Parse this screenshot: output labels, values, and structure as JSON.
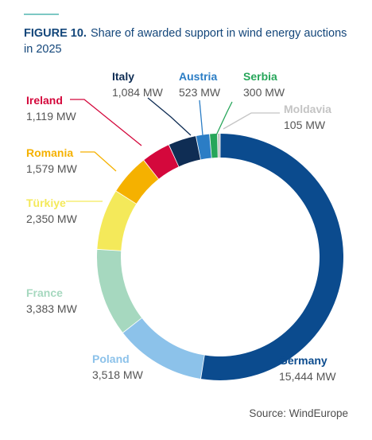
{
  "figure": {
    "label": "FIGURE 10.",
    "caption": "Share of awarded support in wind energy auctions in 2025"
  },
  "source": "Source: WindEurope",
  "chart_data": {
    "type": "pie",
    "donut": true,
    "title": "Share of awarded support in wind energy auctions in 2025",
    "unit": "MW",
    "slices": [
      {
        "name": "Germany",
        "value": 15444,
        "display": "15,444 MW",
        "color": "#0b4b8e"
      },
      {
        "name": "Poland",
        "value": 3518,
        "display": "3,518 MW",
        "color": "#8cc2ea"
      },
      {
        "name": "France",
        "value": 3383,
        "display": "3,383 MW",
        "color": "#a6d8bf"
      },
      {
        "name": "Türkiye",
        "value": 2350,
        "display": "2,350 MW",
        "color": "#f4e95a"
      },
      {
        "name": "Romania",
        "value": 1579,
        "display": "1,579 MW",
        "color": "#f5b100"
      },
      {
        "name": "Ireland",
        "value": 1119,
        "display": "1,119 MW",
        "color": "#d4083c"
      },
      {
        "name": "Italy",
        "value": 1084,
        "display": "1,084 MW",
        "color": "#0f2d54"
      },
      {
        "name": "Austria",
        "value": 523,
        "display": "523 MW",
        "color": "#2b7dc5"
      },
      {
        "name": "Serbia",
        "value": 300,
        "display": "300 MW",
        "color": "#27a65a"
      },
      {
        "name": "Moldavia",
        "value": 105,
        "display": "105 MW",
        "color": "#c4c4c4"
      }
    ]
  }
}
